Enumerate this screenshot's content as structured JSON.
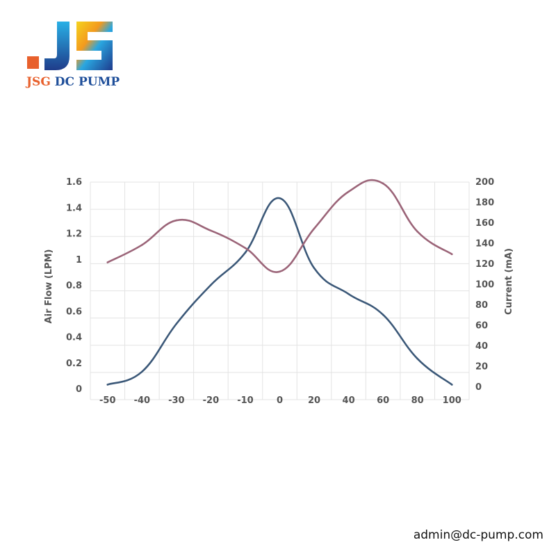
{
  "brand": {
    "name_part1": "JSG",
    "name_part2": "DC PUMP",
    "logo_letters": "JS"
  },
  "contact": {
    "email": "admin@dc-pump.com"
  },
  "chart_data": {
    "type": "line",
    "categories": [
      "-50",
      "-40",
      "-30",
      "-20",
      "-10",
      "0",
      "20",
      "40",
      "60",
      "80",
      "100"
    ],
    "y_left": {
      "label": "Air Flow (LPM)",
      "ticks": [
        "0",
        "0.2",
        "0.4",
        "0.6",
        "0.8",
        "1",
        "1.2",
        "1.4",
        "1.6"
      ],
      "range": [
        0,
        1.6
      ]
    },
    "y_right": {
      "label": "Current (mA)",
      "ticks": [
        "0",
        "20",
        "40",
        "60",
        "80",
        "100",
        "120",
        "140",
        "160",
        "180",
        "200"
      ],
      "range": [
        0,
        200
      ]
    },
    "series": [
      {
        "axis": "left",
        "color": "#3b5878",
        "values": [
          0.03,
          0.13,
          0.5,
          0.8,
          1.05,
          1.47,
          0.93,
          0.73,
          0.57,
          0.23,
          0.03
        ]
      },
      {
        "axis": "right",
        "color": "#9b6478",
        "values": [
          121,
          138,
          162,
          152,
          135,
          112,
          154,
          190,
          198,
          151,
          129
        ]
      }
    ],
    "grid": true,
    "legend": "none"
  }
}
